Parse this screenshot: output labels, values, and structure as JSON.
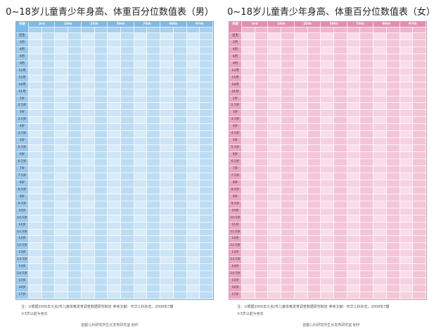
{
  "boy": {
    "title": "0~18岁儿童青少年身高、体重百分位数值表（男）",
    "age_header": "年龄",
    "percentiles": [
      "3rd",
      "10th",
      "25th",
      "50th",
      "75th",
      "90th",
      "97th"
    ],
    "ages": [
      "出生",
      "2月",
      "4月",
      "6月",
      "9月",
      "12月",
      "15月",
      "18月",
      "21月",
      "2岁",
      "2.5岁",
      "3岁",
      "3.5岁",
      "4岁",
      "4.5岁",
      "5岁",
      "5.5岁",
      "6岁",
      "6.5岁",
      "7岁",
      "7.5岁",
      "8岁",
      "8.5岁",
      "9岁",
      "9.5岁",
      "10岁",
      "10.5岁",
      "11岁",
      "11.5岁",
      "12岁",
      "12.5岁",
      "13岁",
      "13.5岁",
      "14岁",
      "14.5岁",
      "15岁",
      "16岁",
      "17岁"
    ],
    "note1": "注：①根据2005年九省/市儿童体格发育调查数据研究制定    参考文献：中华儿科杂志，2009年7期",
    "note2": "②3岁以前为身长",
    "footer": "首都儿科研究所生长发育研究室 制作"
  },
  "girl": {
    "title": "0~18岁儿童青少年身高、体重百分位数值表（女）",
    "age_header": "年龄",
    "percentiles": [
      "3rd",
      "10th",
      "25th",
      "50th",
      "75th",
      "90th",
      "97th"
    ],
    "ages": [
      "出生",
      "2月",
      "4月",
      "6月",
      "9月",
      "12月",
      "15月",
      "18月",
      "21月",
      "2岁",
      "2.5岁",
      "3岁",
      "3.5岁",
      "4岁",
      "4.5岁",
      "5岁",
      "5.5岁",
      "6岁",
      "6.5岁",
      "7岁",
      "7.5岁",
      "8岁",
      "8.5岁",
      "9岁",
      "9.5岁",
      "10岁",
      "10.5岁",
      "11岁",
      "11.5岁",
      "12岁",
      "12.5岁",
      "13岁",
      "13.5岁",
      "14岁",
      "14.5岁",
      "15岁",
      "16岁",
      "17岁"
    ],
    "note1": "注：①根据2005年九省/市儿童体格发育调查数据研究制定    参考文献：中华儿科杂志，2009年7期",
    "note2": "②3岁以前为身长",
    "footer": "首都儿科研究所生长发育研究室 制作"
  }
}
